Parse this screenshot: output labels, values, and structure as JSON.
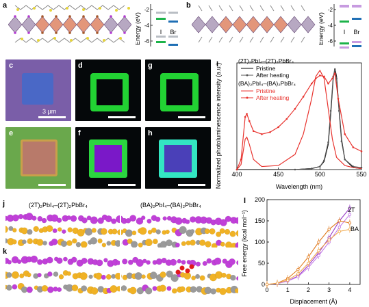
{
  "panels": {
    "a": "a",
    "b": "b",
    "c": "c",
    "d": "d",
    "e": "e",
    "f": "f",
    "g": "g",
    "h": "h",
    "i": "i",
    "j": "j",
    "k": "k",
    "l": "l"
  },
  "energy_diagram_a": {
    "ylabel": "Energy (eV)",
    "ticks": [
      "-2",
      "-4",
      "-6"
    ],
    "labels": [
      "I",
      "Br"
    ],
    "colors": {
      "I": "#1db34a",
      "Br": "#1f6fb5",
      "faint": "#b9bec4"
    }
  },
  "energy_diagram_b": {
    "ylabel": "Energy (eV)",
    "ticks": [
      "-2",
      "-4",
      "-6"
    ],
    "labels": [
      "I",
      "Br"
    ],
    "colors": {
      "I": "#1db34a",
      "Br": "#1f6fb5",
      "faint": "#c79be0"
    }
  },
  "micrographs": {
    "scale_label": "3 μm"
  },
  "chart_data": {
    "type": "line",
    "ylabel": "Normalized photoluminescence intensity (a.u.)",
    "xlabel": "Wavelength (nm)",
    "xlim": [
      400,
      550
    ],
    "xticks": [
      "400",
      "450",
      "500",
      "550"
    ],
    "legend_group1_title": "(2T)₂PbI₄–(2T)₂PbBr₄",
    "legend_group1": [
      "Pristine",
      "After heating"
    ],
    "legend_group2_title": "(BA)₂PbI₄–(BA)₂PbBr₄",
    "legend_group2": [
      "Pristine",
      "After heating"
    ],
    "series": [
      {
        "name": "Pristine",
        "color": "#000000",
        "x": [
          400,
          470,
          490,
          500,
          505,
          510,
          513,
          516,
          518,
          520,
          523,
          526,
          530,
          540,
          550
        ],
        "y": [
          0.0,
          0.0,
          0.01,
          0.03,
          0.08,
          0.25,
          0.55,
          0.9,
          1.0,
          0.92,
          0.6,
          0.3,
          0.1,
          0.02,
          0.01
        ]
      },
      {
        "name": "After heating",
        "color": "#555555",
        "x": [
          400,
          470,
          490,
          500,
          505,
          510,
          513,
          516,
          518,
          520,
          523,
          526,
          530,
          540,
          550
        ],
        "y": [
          0.0,
          0.0,
          0.01,
          0.03,
          0.09,
          0.27,
          0.58,
          0.92,
          0.98,
          0.9,
          0.58,
          0.28,
          0.1,
          0.03,
          0.02
        ]
      },
      {
        "name": "Pristine",
        "color": "#e8322d",
        "x": [
          400,
          405,
          410,
          412,
          415,
          420,
          430,
          450,
          470,
          480,
          490,
          495,
          500,
          505,
          510,
          515,
          520,
          530,
          540,
          550
        ],
        "y": [
          0.0,
          0.05,
          0.3,
          0.32,
          0.25,
          0.1,
          0.03,
          0.04,
          0.15,
          0.35,
          0.7,
          0.92,
          0.98,
          0.9,
          0.6,
          0.3,
          0.12,
          0.04,
          0.02,
          0.01
        ]
      },
      {
        "name": "After heating",
        "color": "#e8322d",
        "x": [
          400,
          405,
          410,
          412,
          415,
          420,
          430,
          440,
          450,
          460,
          470,
          480,
          490,
          495,
          500,
          505,
          510,
          515,
          518,
          522,
          530,
          540,
          550
        ],
        "y": [
          0.0,
          0.1,
          0.52,
          0.55,
          0.48,
          0.38,
          0.35,
          0.37,
          0.42,
          0.5,
          0.6,
          0.72,
          0.85,
          0.9,
          0.93,
          0.92,
          0.85,
          0.9,
          0.95,
          0.7,
          0.35,
          0.22,
          0.18
        ]
      }
    ]
  },
  "chart_l": {
    "type": "line",
    "ylabel": "Free energy (kcal mol⁻¹)",
    "xlabel": "Displacement (Å)",
    "xlim": [
      0,
      4.5
    ],
    "ylim": [
      0,
      200
    ],
    "xticks": [
      "0",
      "1",
      "2",
      "3",
      "4"
    ],
    "yticks": [
      "0",
      "50",
      "100",
      "150",
      "200"
    ],
    "series": [
      {
        "name": "2T",
        "color": "#9b3dc9",
        "x": [
          0,
          0.5,
          1,
          1.5,
          2,
          2.5,
          3,
          3.5,
          4
        ],
        "y": [
          0,
          2,
          8,
          20,
          45,
          75,
          110,
          150,
          180
        ]
      },
      {
        "name": "",
        "color": "#c47ee8",
        "x": [
          0,
          0.5,
          1,
          1.5,
          2,
          2.5,
          3,
          3.5,
          4
        ],
        "y": [
          0,
          2,
          8,
          18,
          40,
          68,
          100,
          135,
          165
        ]
      },
      {
        "name": "BA",
        "color": "#e07a1e",
        "x": [
          0,
          0.5,
          1,
          1.5,
          2,
          2.5,
          3,
          3.5,
          4
        ],
        "y": [
          0,
          3,
          14,
          35,
          65,
          100,
          130,
          150,
          145
        ]
      },
      {
        "name": "",
        "color": "#f0a84a",
        "x": [
          0,
          0.5,
          1,
          1.5,
          2,
          2.5,
          3,
          3.5,
          4
        ],
        "y": [
          0,
          3,
          10,
          25,
          50,
          80,
          105,
          125,
          130
        ]
      }
    ]
  },
  "panel_j": {
    "title_left": "(2T)₂PbI₄–(2T)₂PbBr₄",
    "title_right": "(BA)₂PbI₄–(BA)₂PbBr₄"
  }
}
